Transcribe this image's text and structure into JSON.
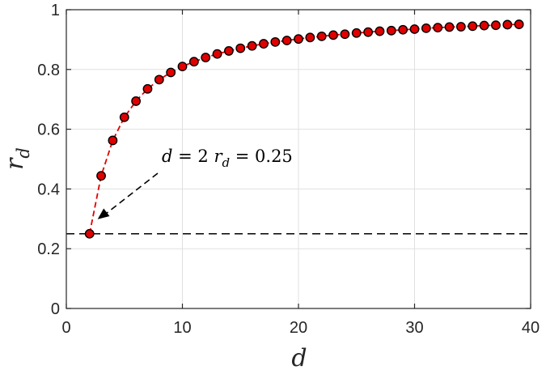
{
  "chart_data": {
    "type": "scatter",
    "title": "",
    "xlabel": "d",
    "ylabel": "r",
    "ylabel_sub": "d",
    "xlim": [
      0,
      40
    ],
    "ylim": [
      0,
      1
    ],
    "xticks": [
      "0",
      "10",
      "20",
      "30",
      "40"
    ],
    "yticks": [
      "0",
      "0.2",
      "0.4",
      "0.6",
      "0.8",
      "1"
    ],
    "grid": true,
    "series": [
      {
        "x": [
          2,
          3,
          4,
          5,
          6,
          7,
          8,
          9,
          10,
          11,
          12,
          13,
          14,
          15,
          16,
          17,
          18,
          19,
          20,
          21,
          22,
          23,
          24,
          25,
          26,
          27,
          28,
          29,
          30,
          31,
          32,
          33,
          34,
          35,
          36,
          37,
          38,
          39
        ],
        "values": [
          0.25,
          0.444,
          0.5625,
          0.64,
          0.694,
          0.735,
          0.766,
          0.79,
          0.81,
          0.826,
          0.84,
          0.852,
          0.862,
          0.871,
          0.879,
          0.886,
          0.892,
          0.897,
          0.902,
          0.907,
          0.911,
          0.915,
          0.918,
          0.922,
          0.925,
          0.928,
          0.93,
          0.933,
          0.935,
          0.938,
          0.94,
          0.942,
          0.943,
          0.945,
          0.947,
          0.948,
          0.95,
          0.951
        ],
        "marker_color": "#e00000",
        "line_color": "#e00000",
        "line_style": "dashed"
      }
    ],
    "reference_line": {
      "y": 0.25,
      "style": "dashed",
      "color": "#000000"
    },
    "annotation": {
      "text_parts": [
        "d",
        " = 2 ",
        "r",
        "d",
        " = 0.25"
      ],
      "points_to": {
        "x": 2,
        "y": 0.25
      }
    }
  }
}
